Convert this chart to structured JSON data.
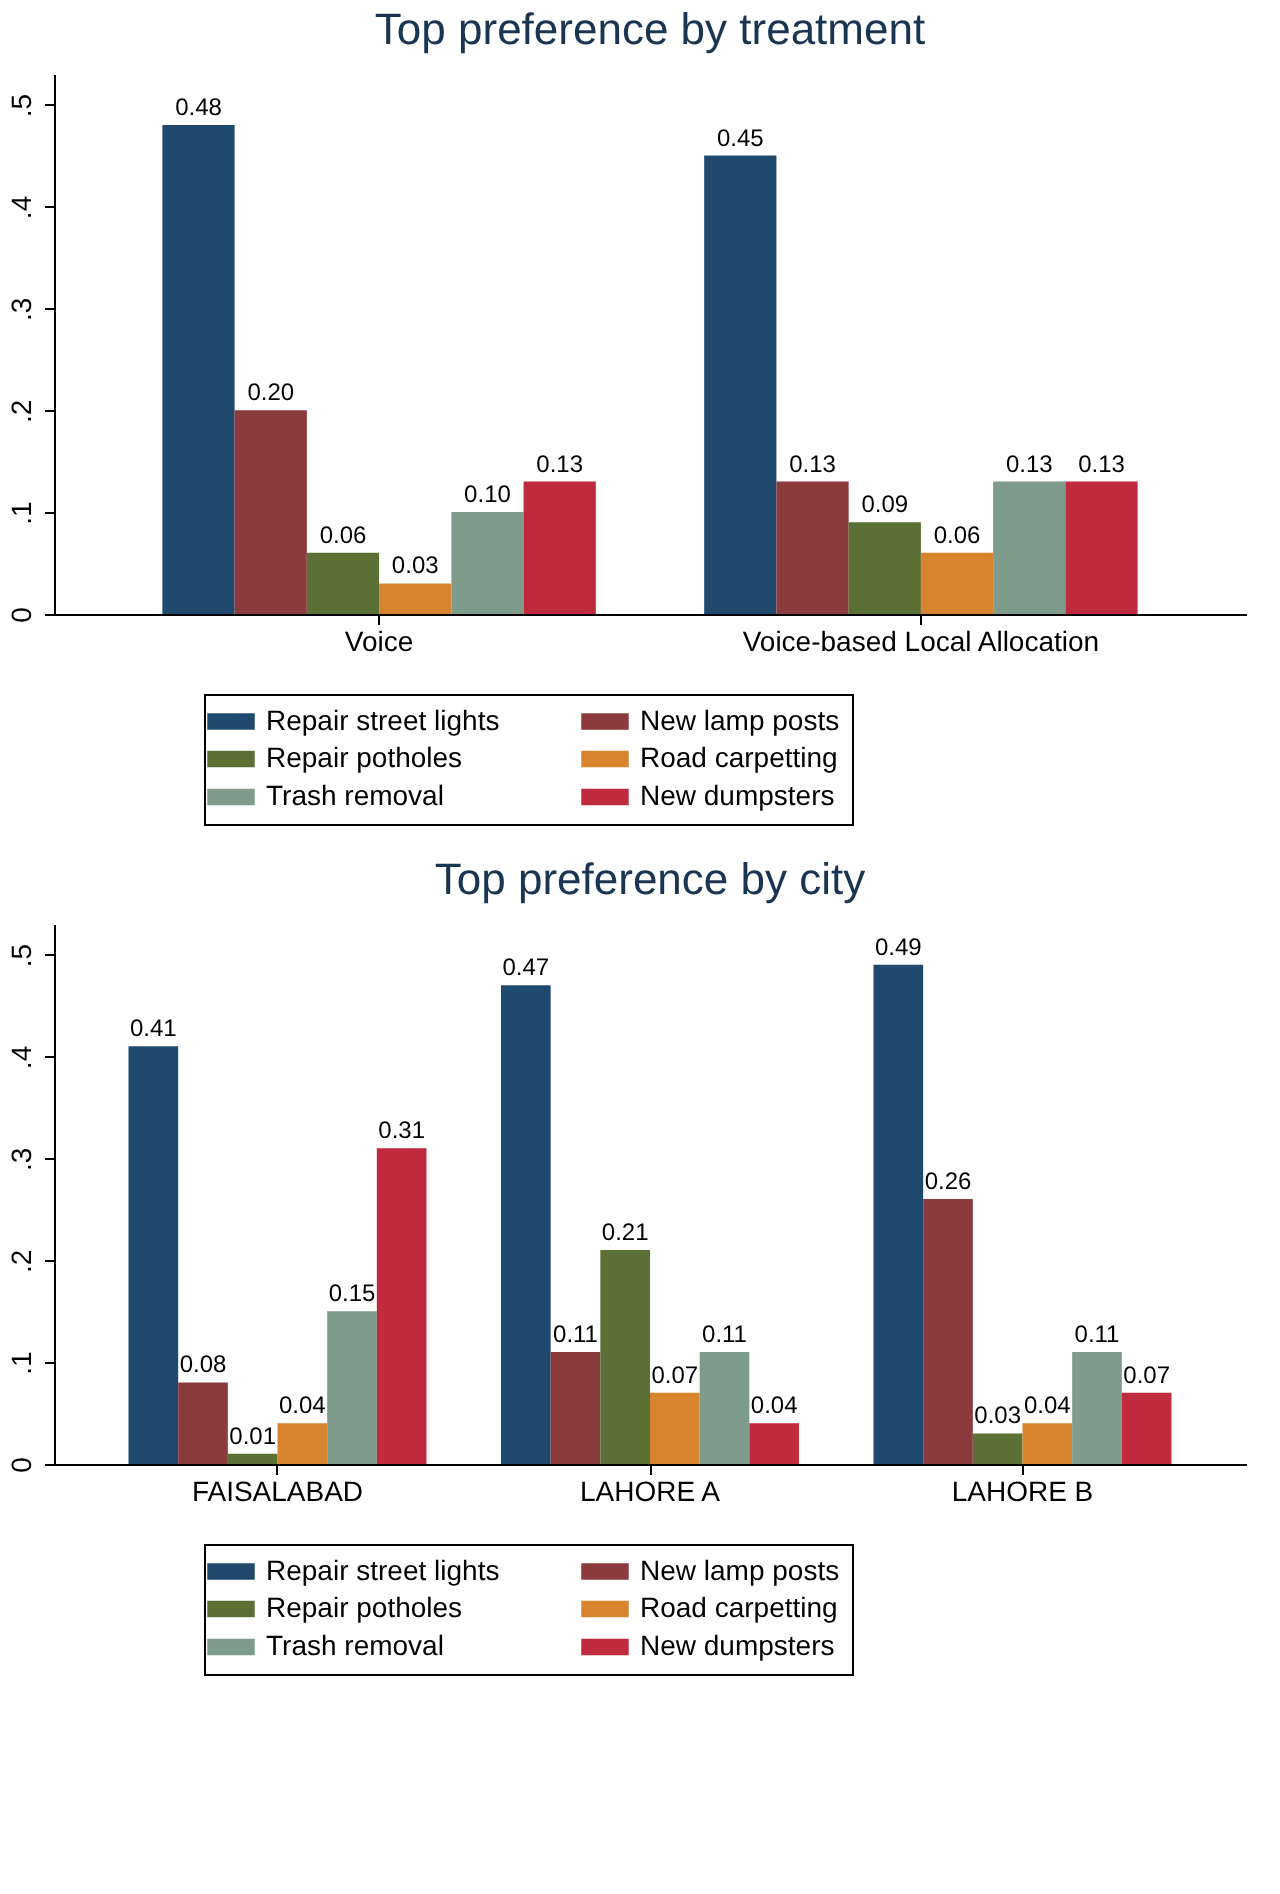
{
  "chart_data": [
    {
      "type": "bar",
      "title": "Top preference by treatment",
      "categories": [
        "Voice",
        "Voice-based Local Allocation"
      ],
      "series": [
        {
          "name": "Repair street lights",
          "color": "#1f4a6e",
          "values": [
            0.48,
            0.45
          ],
          "value_labels": [
            "0.48",
            "0.45"
          ]
        },
        {
          "name": "New lamp posts",
          "color": "#8b3a3e",
          "values": [
            0.2,
            0.13
          ],
          "value_labels": [
            "0.20",
            "0.13"
          ]
        },
        {
          "name": "Repair potholes",
          "color": "#5b7035",
          "values": [
            0.06,
            0.09
          ],
          "value_labels": [
            "0.06",
            "0.09"
          ]
        },
        {
          "name": "Road carpetting",
          "color": "#d8842e",
          "values": [
            0.03,
            0.06
          ],
          "value_labels": [
            "0.03",
            "0.06"
          ]
        },
        {
          "name": "Trash removal",
          "color": "#7f9b8b",
          "values": [
            0.1,
            0.13
          ],
          "value_labels": [
            "0.10",
            "0.13"
          ]
        },
        {
          "name": "New dumpsters",
          "color": "#c02a3e",
          "values": [
            0.13,
            0.13
          ],
          "value_labels": [
            "0.13",
            "0.13"
          ]
        }
      ],
      "ylim": [
        0,
        0.53
      ],
      "yticks": [
        0,
        {
          "value": 0.1,
          "label": ".1"
        },
        {
          "value": 0.2,
          "label": ".2"
        },
        {
          "value": 0.3,
          "label": ".3"
        },
        {
          "value": 0.4,
          "label": ".4"
        },
        {
          "value": 0.5,
          "label": ".5"
        }
      ],
      "legend": "bottom"
    },
    {
      "type": "bar",
      "title": "Top preference by city",
      "categories": [
        "FAISALABAD",
        "LAHORE A",
        "LAHORE B"
      ],
      "series": [
        {
          "name": "Repair street lights",
          "color": "#1f4a6e",
          "values": [
            0.41,
            0.47,
            0.49
          ],
          "value_labels": [
            "0.41",
            "0.47",
            "0.49"
          ]
        },
        {
          "name": "New lamp posts",
          "color": "#8b3a3e",
          "values": [
            0.08,
            0.11,
            0.26
          ],
          "value_labels": [
            "0.08",
            "0.11",
            "0.26"
          ]
        },
        {
          "name": "Repair potholes",
          "color": "#5b7035",
          "values": [
            0.01,
            0.21,
            0.03
          ],
          "value_labels": [
            "0.01",
            "0.21",
            "0.03"
          ]
        },
        {
          "name": "Road carpetting",
          "color": "#d8842e",
          "values": [
            0.04,
            0.07,
            0.04
          ],
          "value_labels": [
            "0.04",
            "0.07",
            "0.04"
          ]
        },
        {
          "name": "Trash removal",
          "color": "#7f9b8b",
          "values": [
            0.15,
            0.11,
            0.11
          ],
          "value_labels": [
            "0.15",
            "0.11",
            "0.11"
          ]
        },
        {
          "name": "New dumpsters",
          "color": "#c02a3e",
          "values": [
            0.31,
            0.04,
            0.07
          ],
          "value_labels": [
            "0.31",
            "0.04",
            "0.07"
          ]
        }
      ],
      "ylim": [
        0,
        0.53
      ],
      "yticks": [
        0,
        {
          "value": 0.1,
          "label": ".1"
        },
        {
          "value": 0.2,
          "label": ".2"
        },
        {
          "value": 0.3,
          "label": ".3"
        },
        {
          "value": 0.4,
          "label": ".4"
        },
        {
          "value": 0.5,
          "label": ".5"
        }
      ],
      "legend": "bottom"
    }
  ]
}
